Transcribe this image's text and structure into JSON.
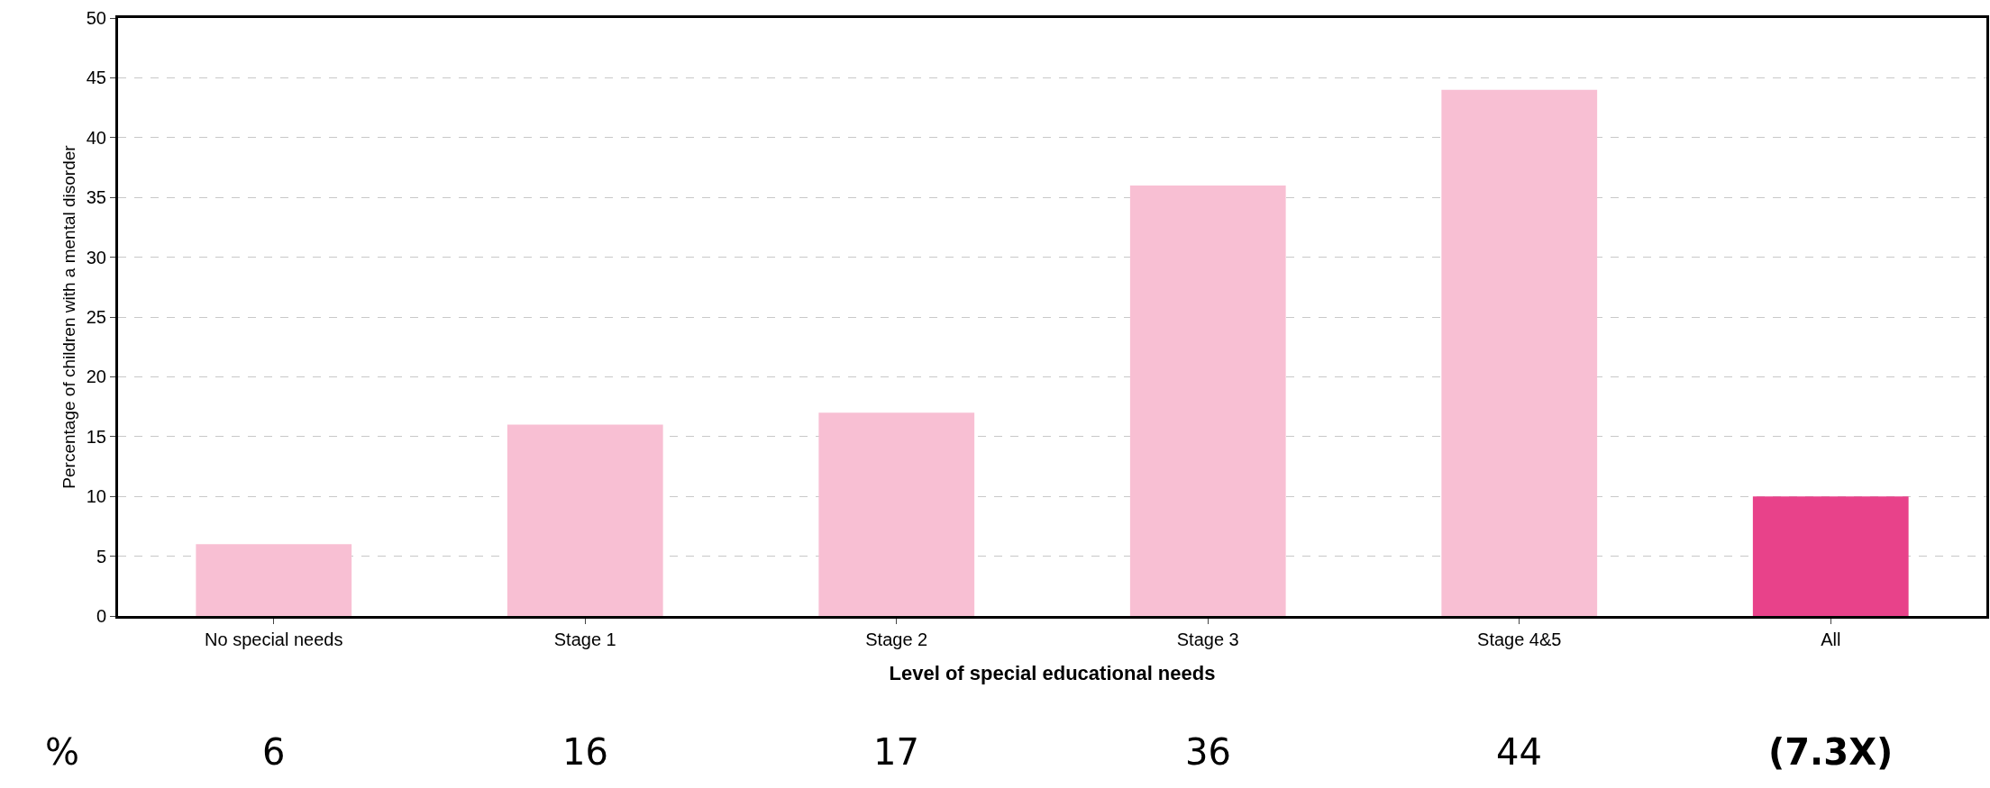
{
  "chart_data": {
    "type": "bar",
    "xlabel": "Level of special educational needs",
    "ylabel": "Percentage of children with a mental disorder",
    "categories": [
      "No special needs",
      "Stage 1",
      "Stage 2",
      "Stage 3",
      "Stage 4&5",
      "All"
    ],
    "values": [
      6,
      16,
      17,
      36,
      44,
      10
    ],
    "colors": [
      "#f8bfd3",
      "#f8bfd3",
      "#f8bfd3",
      "#f8bfd3",
      "#f8bfd3",
      "#e8428a"
    ],
    "value_labels": [
      "6",
      "16",
      "17",
      "36",
      "44",
      null
    ],
    "annotations": [
      "%",
      "(7.3X)"
    ],
    "ylim": [
      0,
      50
    ],
    "yticks": [
      0,
      5,
      10,
      15,
      20,
      25,
      30,
      35,
      40,
      45,
      50
    ],
    "grid": "y",
    "legend": false
  }
}
